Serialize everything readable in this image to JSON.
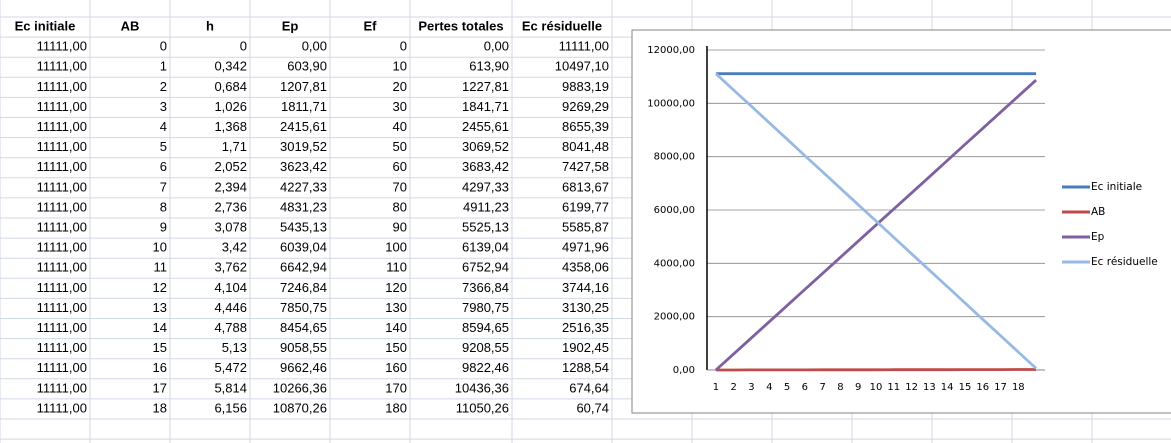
{
  "table": {
    "columns": [
      "Ec initiale",
      "AB",
      "h",
      "Ep",
      "Ef",
      "Pertes totales",
      "Ec résiduelle"
    ],
    "rows": [
      [
        "11111,00",
        "0",
        "0",
        "0,00",
        "0",
        "0,00",
        "11111,00"
      ],
      [
        "11111,00",
        "1",
        "0,342",
        "603,90",
        "10",
        "613,90",
        "10497,10"
      ],
      [
        "11111,00",
        "2",
        "0,684",
        "1207,81",
        "20",
        "1227,81",
        "9883,19"
      ],
      [
        "11111,00",
        "3",
        "1,026",
        "1811,71",
        "30",
        "1841,71",
        "9269,29"
      ],
      [
        "11111,00",
        "4",
        "1,368",
        "2415,61",
        "40",
        "2455,61",
        "8655,39"
      ],
      [
        "11111,00",
        "5",
        "1,71",
        "3019,52",
        "50",
        "3069,52",
        "8041,48"
      ],
      [
        "11111,00",
        "6",
        "2,052",
        "3623,42",
        "60",
        "3683,42",
        "7427,58"
      ],
      [
        "11111,00",
        "7",
        "2,394",
        "4227,33",
        "70",
        "4297,33",
        "6813,67"
      ],
      [
        "11111,00",
        "8",
        "2,736",
        "4831,23",
        "80",
        "4911,23",
        "6199,77"
      ],
      [
        "11111,00",
        "9",
        "3,078",
        "5435,13",
        "90",
        "5525,13",
        "5585,87"
      ],
      [
        "11111,00",
        "10",
        "3,42",
        "6039,04",
        "100",
        "6139,04",
        "4971,96"
      ],
      [
        "11111,00",
        "11",
        "3,762",
        "6642,94",
        "110",
        "6752,94",
        "4358,06"
      ],
      [
        "11111,00",
        "12",
        "4,104",
        "7246,84",
        "120",
        "7366,84",
        "3744,16"
      ],
      [
        "11111,00",
        "13",
        "4,446",
        "7850,75",
        "130",
        "7980,75",
        "3130,25"
      ],
      [
        "11111,00",
        "14",
        "4,788",
        "8454,65",
        "140",
        "8594,65",
        "2516,35"
      ],
      [
        "11111,00",
        "15",
        "5,13",
        "9058,55",
        "150",
        "9208,55",
        "1902,45"
      ],
      [
        "11111,00",
        "16",
        "5,472",
        "9662,46",
        "160",
        "9822,46",
        "1288,54"
      ],
      [
        "11111,00",
        "17",
        "5,814",
        "10266,36",
        "170",
        "10436,36",
        "674,64"
      ],
      [
        "11111,00",
        "18",
        "6,156",
        "10870,26",
        "180",
        "11050,26",
        "60,74"
      ]
    ]
  },
  "chart_data": {
    "type": "line",
    "categories": [
      "1",
      "2",
      "3",
      "4",
      "5",
      "6",
      "7",
      "8",
      "9",
      "10",
      "11",
      "12",
      "13",
      "14",
      "15",
      "16",
      "17",
      "18",
      null
    ],
    "series": [
      {
        "name": "Ec initiale",
        "color": "#4a7ebb",
        "values": [
          11111,
          11111,
          11111,
          11111,
          11111,
          11111,
          11111,
          11111,
          11111,
          11111,
          11111,
          11111,
          11111,
          11111,
          11111,
          11111,
          11111,
          11111,
          11111
        ]
      },
      {
        "name": "AB",
        "color": "#be4b48",
        "values": [
          0,
          1,
          2,
          3,
          4,
          5,
          6,
          7,
          8,
          9,
          10,
          11,
          12,
          13,
          14,
          15,
          16,
          17,
          18
        ]
      },
      {
        "name": "Ep",
        "color": "#7d60a0",
        "values": [
          0,
          603.9,
          1207.81,
          1811.71,
          2415.61,
          3019.52,
          3623.42,
          4227.33,
          4831.23,
          5435.13,
          6039.04,
          6642.94,
          7246.84,
          7850.75,
          8454.65,
          9058.55,
          9662.46,
          10266.36,
          10870.26
        ]
      },
      {
        "name": "Ec résiduelle",
        "color": "#98b9e3",
        "values": [
          11111.0,
          10497.1,
          9883.19,
          9269.29,
          8655.39,
          8041.48,
          7427.58,
          6813.67,
          6199.77,
          5585.87,
          4971.96,
          4358.06,
          3744.16,
          3130.25,
          2516.35,
          1902.45,
          1288.54,
          674.64,
          60.74
        ]
      }
    ],
    "ylim": [
      0,
      12000
    ],
    "yticks": [
      {
        "value": 0,
        "label": "0,00"
      },
      {
        "value": 2000,
        "label": "2000,00"
      },
      {
        "value": 4000,
        "label": "4000,00"
      },
      {
        "value": 6000,
        "label": "6000,00"
      },
      {
        "value": 8000,
        "label": "8000,00"
      },
      {
        "value": 10000,
        "label": "10000,00"
      },
      {
        "value": 12000,
        "label": "12000,00"
      }
    ],
    "grid": true,
    "legend": "right"
  }
}
